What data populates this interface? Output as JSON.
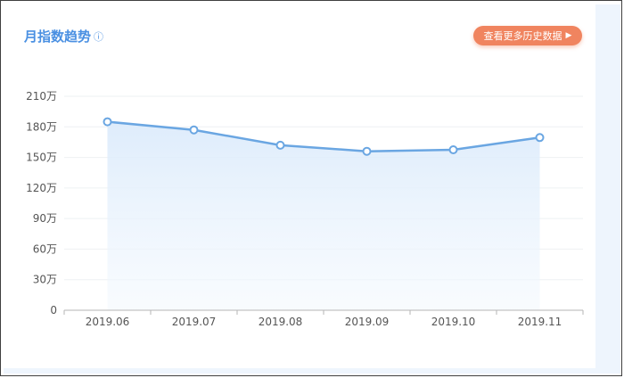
{
  "header": {
    "title": "月指数趋势",
    "info_icon": "info-circle-icon",
    "history_button_label": "查看更多历史数据",
    "history_button_icon": "play-arrow-icon",
    "accent_color": "#4a90e2",
    "button_color": "#f0845f"
  },
  "chart_data": {
    "type": "area",
    "title": "月指数趋势",
    "xlabel": "",
    "ylabel": "",
    "categories": [
      "2019.06",
      "2019.07",
      "2019.08",
      "2019.09",
      "2019.10",
      "2019.11"
    ],
    "series": [
      {
        "values": [
          1850000,
          1770000,
          1620000,
          1560000,
          1575000,
          1695000
        ],
        "color": "#6aa6e2"
      }
    ],
    "ylim": [
      0,
      2100000
    ],
    "yticks": [
      0,
      300000,
      600000,
      900000,
      1200000,
      1500000,
      1800000,
      2100000
    ],
    "ytick_labels": [
      "0",
      "30万",
      "60万",
      "90万",
      "120万",
      "150万",
      "180万",
      "210万"
    ],
    "grid": true,
    "legend": "none"
  }
}
